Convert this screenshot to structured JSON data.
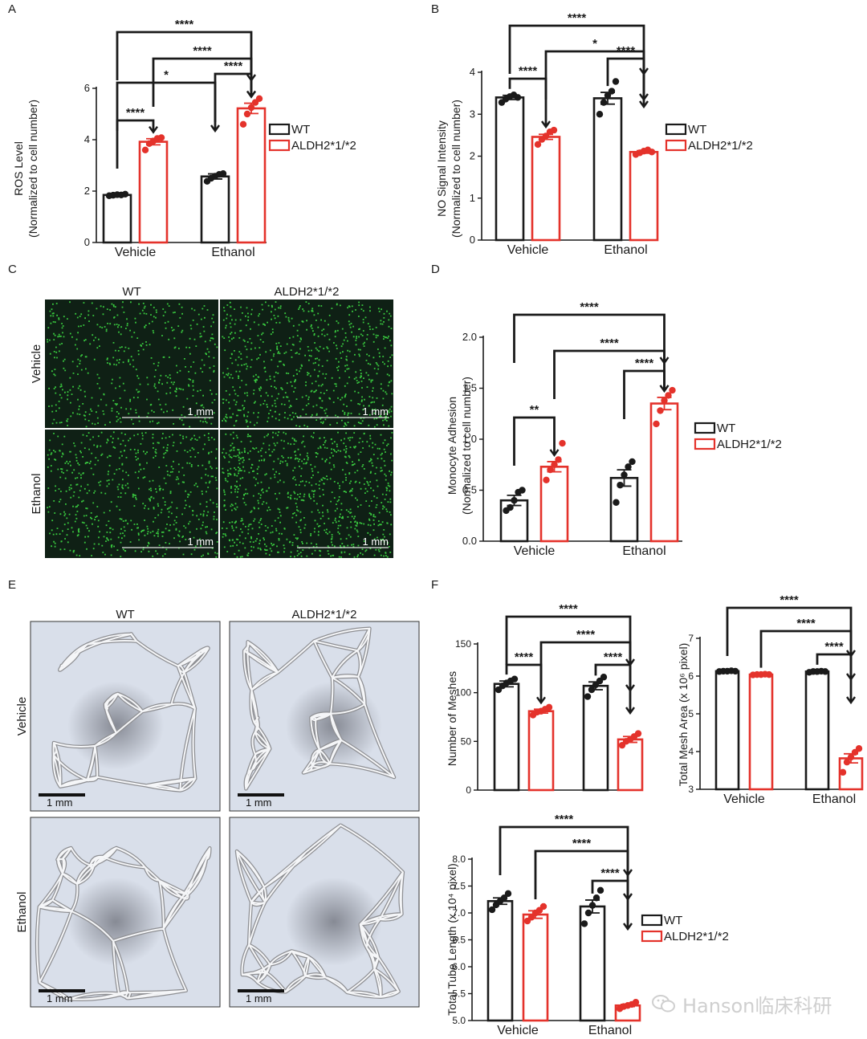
{
  "colors": {
    "wt": "#1a1a1a",
    "aldh2": "#e4322b",
    "axis": "#1a1a1a",
    "fluor_bg": "#0f2015",
    "fluor_dot": "#39c83f",
    "bright_bg": "#d9dfea"
  },
  "watermark": {
    "text": "Hanson临床科研",
    "icon": "wechat-icon"
  },
  "panel_letters": [
    "A",
    "B",
    "C",
    "D",
    "E",
    "F"
  ],
  "legend": {
    "wt": "WT",
    "aldh2": "ALDH2*1/*2"
  },
  "image_panels": {
    "C": {
      "col_labels": [
        "WT",
        "ALDH2*1/*2"
      ],
      "row_labels": [
        "Vehicle",
        "Ethanol"
      ],
      "scale_label": "1 mm",
      "density": [
        [
          0.55,
          0.8
        ],
        [
          0.7,
          0.95
        ]
      ]
    },
    "E": {
      "col_labels": [
        "WT",
        "ALDH2*1/*2"
      ],
      "row_labels": [
        "Vehicle",
        "Ethanol"
      ],
      "scale_label": "1 mm"
    }
  },
  "chart_data": [
    {
      "id": "A",
      "type": "bar",
      "ylabel": "ROS Level",
      "ylabel2": "(Normalized to cell number)",
      "categories": [
        "Vehicle",
        "Ethanol"
      ],
      "ylim": [
        0,
        6
      ],
      "yticks": [
        0,
        2,
        4,
        6
      ],
      "yticklabels": [
        "0",
        "2",
        "4",
        "6"
      ],
      "series": [
        {
          "name": "WT",
          "values": [
            1.85,
            2.57
          ],
          "err": [
            0.03,
            0.1
          ],
          "points": [
            [
              1.82,
              1.84,
              1.86,
              1.85,
              1.88
            ],
            [
              2.38,
              2.5,
              2.58,
              2.65,
              2.68
            ]
          ]
        },
        {
          "name": "ALDH2*1/*2",
          "values": [
            3.92,
            5.22
          ],
          "err": [
            0.12,
            0.2
          ],
          "points": [
            [
              3.6,
              3.85,
              3.95,
              4.05,
              4.08
            ],
            [
              4.6,
              5.0,
              5.25,
              5.45,
              5.6
            ]
          ]
        }
      ],
      "comparisons": [
        {
          "a": [
            0,
            0
          ],
          "b": [
            0,
            1
          ],
          "label": "****"
        },
        {
          "a": [
            0,
            0
          ],
          "b": [
            1,
            0
          ],
          "label": "*"
        },
        {
          "a": [
            1,
            0
          ],
          "b": [
            1,
            1
          ],
          "label": "****"
        },
        {
          "a": [
            0,
            1
          ],
          "b": [
            1,
            1
          ],
          "label": "****"
        },
        {
          "a": [
            0,
            0
          ],
          "b": [
            1,
            1
          ],
          "label": "****"
        }
      ]
    },
    {
      "id": "B",
      "type": "bar",
      "ylabel": "NO Signal Intensity",
      "ylabel2": "(Normalized to cell number)",
      "categories": [
        "Vehicle",
        "Ethanol"
      ],
      "ylim": [
        0,
        4
      ],
      "yticks": [
        0,
        1,
        2,
        3,
        4
      ],
      "yticklabels": [
        "0",
        "1",
        "2",
        "3",
        "4"
      ],
      "series": [
        {
          "name": "WT",
          "values": [
            3.4,
            3.38
          ],
          "err": [
            0.05,
            0.14
          ],
          "points": [
            [
              3.28,
              3.36,
              3.42,
              3.46,
              3.4
            ],
            [
              3.0,
              3.28,
              3.45,
              3.55,
              3.78
            ]
          ]
        },
        {
          "name": "ALDH2*1/*2",
          "values": [
            2.46,
            2.1
          ],
          "err": [
            0.06,
            0.03
          ],
          "points": [
            [
              2.28,
              2.4,
              2.48,
              2.58,
              2.62
            ],
            [
              2.04,
              2.08,
              2.12,
              2.15,
              2.1
            ]
          ]
        }
      ],
      "comparisons": [
        {
          "a": [
            0,
            0
          ],
          "b": [
            0,
            1
          ],
          "label": "****"
        },
        {
          "a": [
            1,
            0
          ],
          "b": [
            1,
            1
          ],
          "label": "****"
        },
        {
          "a": [
            0,
            1
          ],
          "b": [
            1,
            1
          ],
          "label": "*"
        },
        {
          "a": [
            0,
            0
          ],
          "b": [
            1,
            1
          ],
          "label": "****"
        }
      ]
    },
    {
      "id": "D",
      "type": "bar",
      "ylabel": "Monocyte Adhesion",
      "ylabel2": "(Normalized to cell number)",
      "categories": [
        "Vehicle",
        "Ethanol"
      ],
      "ylim": [
        0,
        2
      ],
      "yticks": [
        0,
        0.5,
        1,
        1.5,
        2
      ],
      "yticklabels": [
        "0.0",
        "0.5",
        "1.0",
        "1.5",
        "2.0"
      ],
      "series": [
        {
          "name": "WT",
          "values": [
            0.4,
            0.62
          ],
          "err": [
            0.05,
            0.08
          ],
          "points": [
            [
              0.3,
              0.33,
              0.4,
              0.48,
              0.5
            ],
            [
              0.38,
              0.55,
              0.65,
              0.73,
              0.78
            ]
          ]
        },
        {
          "name": "ALDH2*1/*2",
          "values": [
            0.73,
            1.35
          ],
          "err": [
            0.05,
            0.06
          ],
          "points": [
            [
              0.6,
              0.7,
              0.75,
              0.8,
              0.96
            ],
            [
              1.15,
              1.28,
              1.38,
              1.43,
              1.48
            ]
          ]
        }
      ],
      "comparisons": [
        {
          "a": [
            0,
            0
          ],
          "b": [
            0,
            1
          ],
          "label": "**"
        },
        {
          "a": [
            1,
            0
          ],
          "b": [
            1,
            1
          ],
          "label": "****"
        },
        {
          "a": [
            0,
            1
          ],
          "b": [
            1,
            1
          ],
          "label": "****"
        },
        {
          "a": [
            0,
            0
          ],
          "b": [
            1,
            1
          ],
          "label": "****"
        }
      ]
    },
    {
      "id": "F1",
      "type": "bar",
      "ylabel": "Number of Meshes",
      "ylabel2": "",
      "categories": [
        "",
        ""
      ],
      "ylim": [
        0,
        150
      ],
      "yticks": [
        0,
        50,
        100,
        150
      ],
      "yticklabels": [
        "0",
        "50",
        "100",
        "150"
      ],
      "series": [
        {
          "name": "WT",
          "values": [
            109,
            107
          ],
          "err": [
            3,
            4
          ],
          "points": [
            [
              103,
              107,
              110,
              112,
              114
            ],
            [
              96,
              103,
              108,
              112,
              116
            ]
          ]
        },
        {
          "name": "ALDH2*1/*2",
          "values": [
            81,
            52
          ],
          "err": [
            2,
            3
          ],
          "points": [
            [
              77,
              80,
              81,
              83,
              85
            ],
            [
              46,
              50,
              52,
              55,
              58
            ]
          ]
        }
      ],
      "comparisons": [
        {
          "a": [
            0,
            0
          ],
          "b": [
            0,
            1
          ],
          "label": "****"
        },
        {
          "a": [
            1,
            0
          ],
          "b": [
            1,
            1
          ],
          "label": "****"
        },
        {
          "a": [
            0,
            1
          ],
          "b": [
            1,
            1
          ],
          "label": "****"
        },
        {
          "a": [
            0,
            0
          ],
          "b": [
            1,
            1
          ],
          "label": "****"
        }
      ]
    },
    {
      "id": "F2",
      "type": "bar",
      "ylabel": "Total Mesh Area (x 10⁶ pixel)",
      "ylabel2": "",
      "categories": [
        "Vehicle",
        "Ethanol"
      ],
      "ylim": [
        3,
        7
      ],
      "yticks": [
        3,
        4,
        5,
        6,
        7
      ],
      "yticklabels": [
        "3",
        "4",
        "5",
        "6",
        "7"
      ],
      "series": [
        {
          "name": "WT",
          "values": [
            6.13,
            6.12
          ],
          "err": [
            0.01,
            0.01
          ],
          "points": [
            [
              6.12,
              6.13,
              6.13,
              6.14,
              6.13
            ],
            [
              6.1,
              6.12,
              6.12,
              6.13,
              6.12
            ]
          ]
        },
        {
          "name": "ALDH2*1/*2",
          "values": [
            6.04,
            3.82
          ],
          "err": [
            0.01,
            0.12
          ],
          "points": [
            [
              6.03,
              6.04,
              6.04,
              6.05,
              6.04
            ],
            [
              3.45,
              3.72,
              3.85,
              3.98,
              4.08
            ]
          ]
        }
      ],
      "comparisons": [
        {
          "a": [
            1,
            0
          ],
          "b": [
            1,
            1
          ],
          "label": "****"
        },
        {
          "a": [
            0,
            1
          ],
          "b": [
            1,
            1
          ],
          "label": "****"
        },
        {
          "a": [
            0,
            0
          ],
          "b": [
            1,
            1
          ],
          "label": "****"
        }
      ]
    },
    {
      "id": "F3",
      "type": "bar",
      "ylabel": "Total Tube Length (x 10⁴ pixel)",
      "ylabel2": "",
      "categories": [
        "Vehicle",
        "Ethanol"
      ],
      "ylim": [
        5,
        8
      ],
      "yticks": [
        5,
        5.5,
        6,
        6.5,
        7,
        7.5,
        8
      ],
      "yticklabels": [
        "5.0",
        "5.5",
        "6.0",
        "6.5",
        "7.0",
        "7.5",
        "8.0"
      ],
      "series": [
        {
          "name": "WT",
          "values": [
            7.22,
            7.12
          ],
          "err": [
            0.06,
            0.12
          ],
          "points": [
            [
              7.06,
              7.15,
              7.22,
              7.28,
              7.36
            ],
            [
              6.8,
              7.0,
              7.14,
              7.28,
              7.42
            ]
          ]
        },
        {
          "name": "ALDH2*1/*2",
          "values": [
            6.97,
            5.28
          ],
          "err": [
            0.07,
            0.02
          ],
          "points": [
            [
              6.85,
              6.92,
              7.0,
              7.05,
              7.12
            ],
            [
              5.22,
              5.26,
              5.28,
              5.3,
              5.34
            ]
          ]
        }
      ],
      "comparisons": [
        {
          "a": [
            1,
            0
          ],
          "b": [
            1,
            1
          ],
          "label": "****"
        },
        {
          "a": [
            0,
            1
          ],
          "b": [
            1,
            1
          ],
          "label": "****"
        },
        {
          "a": [
            0,
            0
          ],
          "b": [
            1,
            1
          ],
          "label": "****"
        }
      ]
    }
  ]
}
